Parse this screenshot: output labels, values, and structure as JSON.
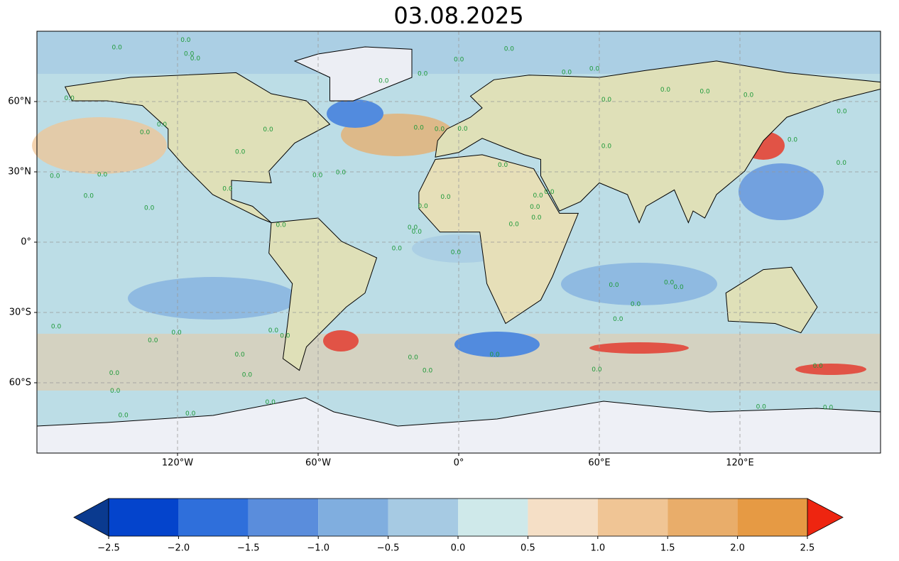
{
  "title": "03.08.2025",
  "map": {
    "lon_range": [
      -180,
      180
    ],
    "lat_range": [
      -90,
      90
    ],
    "xticks": [
      {
        "value": -120,
        "label": "120°W"
      },
      {
        "value": -60,
        "label": "60°W"
      },
      {
        "value": 0,
        "label": "0°"
      },
      {
        "value": 60,
        "label": "60°E"
      },
      {
        "value": 120,
        "label": "120°E"
      }
    ],
    "yticks": [
      {
        "value": 60,
        "label": "60°N"
      },
      {
        "value": 30,
        "label": "30°N"
      },
      {
        "value": 0,
        "label": "0°"
      },
      {
        "value": -30,
        "label": "30°S"
      },
      {
        "value": -60,
        "label": "60°S"
      }
    ],
    "grid": true,
    "contour_label": "0.0"
  },
  "colorbar": {
    "ticks": [
      {
        "value": -2.5,
        "label": "−2.5"
      },
      {
        "value": -2.0,
        "label": "−2.0"
      },
      {
        "value": -1.5,
        "label": "−1.5"
      },
      {
        "value": -1.0,
        "label": "−1.0"
      },
      {
        "value": -0.5,
        "label": "−0.5"
      },
      {
        "value": 0,
        "label": "0.0"
      },
      {
        "value": 0.5,
        "label": "0.5"
      },
      {
        "value": 1.0,
        "label": "1.0"
      },
      {
        "value": 1.5,
        "label": "1.5"
      },
      {
        "value": 2.0,
        "label": "2.0"
      },
      {
        "value": 2.5,
        "label": "2.5"
      }
    ],
    "colors": [
      "#0444cc",
      "#2f6fdb",
      "#5a8ddc",
      "#80aedf",
      "#a6cae3",
      "#cfe9ea",
      "#f5dfc6",
      "#f0c595",
      "#e9ad6a",
      "#e69a44"
    ],
    "under_color": "#0a3a8f",
    "over_color": "#ee2510"
  }
}
